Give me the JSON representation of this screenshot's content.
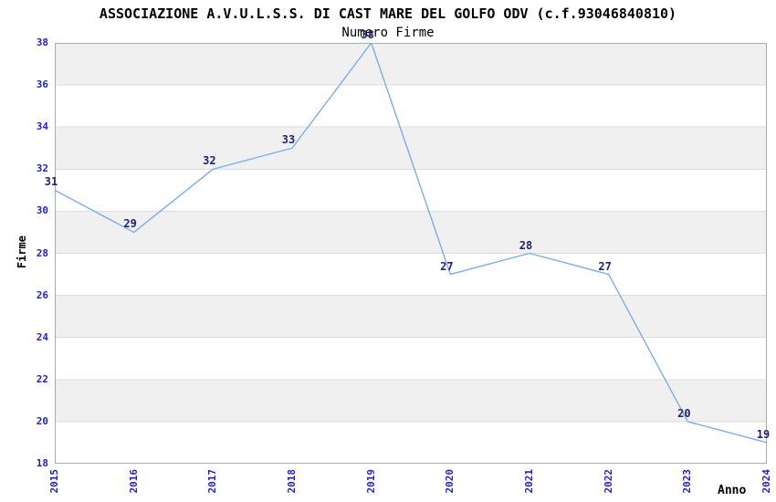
{
  "header": {
    "title": "ASSOCIAZIONE A.V.U.L.S.S. DI CAST MARE DEL GOLFO ODV (c.f.93046840810)",
    "subtitle": "Numero Firme"
  },
  "chart_data": {
    "type": "line",
    "title": "ASSOCIAZIONE A.V.U.L.S.S. DI CAST MARE DEL GOLFO ODV (c.f.93046840810)",
    "subtitle": "Numero Firme",
    "xlabel": "Anno",
    "ylabel": "Firme",
    "categories": [
      "2015",
      "2016",
      "2017",
      "2018",
      "2019",
      "2020",
      "2021",
      "2022",
      "2023",
      "2024"
    ],
    "values": [
      31,
      29,
      32,
      33,
      38,
      27,
      28,
      27,
      20,
      19
    ],
    "ylim": [
      18,
      38
    ],
    "ytick_step": 2,
    "grid": "horizontal-bands",
    "legend": "none",
    "value_labels_shown": true,
    "colors": {
      "line": "#7aaeeb",
      "band": "#f0f0f0",
      "grid": "#dcdcdc",
      "border": "#ababab",
      "tick_label": "#2222cc",
      "value_label": "#22227a",
      "text": "#000000",
      "background": "#ffffff"
    }
  }
}
